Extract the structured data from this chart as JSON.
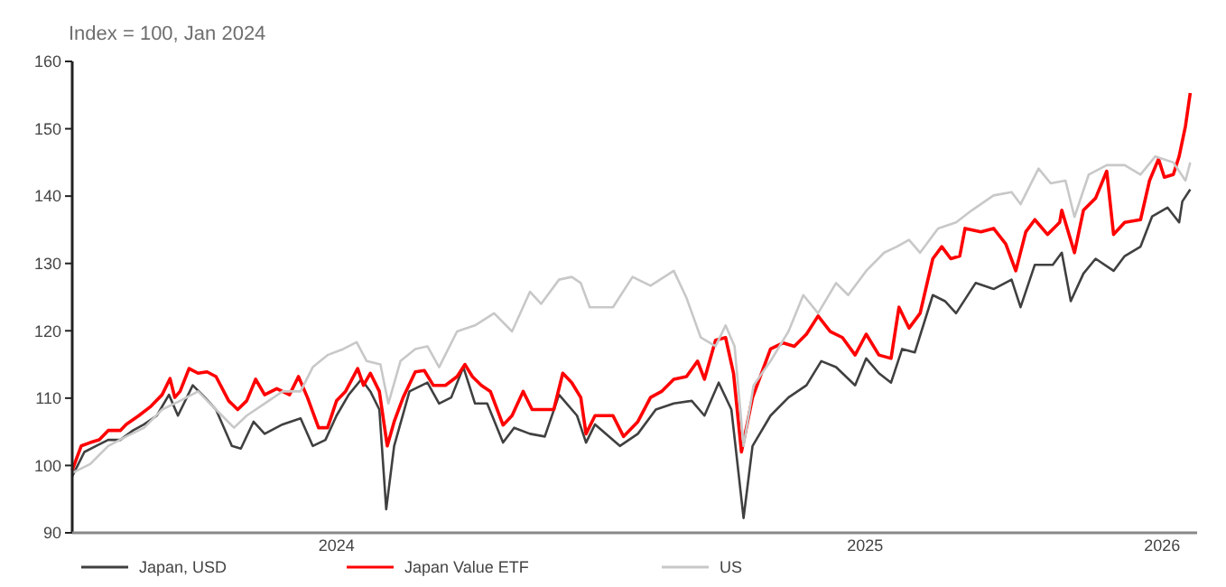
{
  "chart_data": {
    "type": "line",
    "title": "Index = 100, Jan 2024",
    "ylim": [
      90,
      160
    ],
    "yticks": [
      90,
      100,
      110,
      120,
      130,
      140,
      150,
      160
    ],
    "xlim": [
      2024,
      2026.128
    ],
    "xticks": [
      {
        "value": 2024.5,
        "label": "2024"
      },
      {
        "value": 2025.5,
        "label": "2025"
      },
      {
        "value": 2026.062,
        "label": "2026"
      }
    ],
    "grid": false,
    "legend": "bottom",
    "series": [
      {
        "name": "Japan, USD",
        "color": "#404040",
        "x": [
          2024.0,
          2024.023,
          2024.045,
          2024.068,
          2024.091,
          2024.115,
          2024.136,
          2024.16,
          2024.183,
          2024.2,
          2024.228,
          2024.251,
          2024.272,
          2024.302,
          2024.319,
          2024.343,
          2024.364,
          2024.398,
          2024.432,
          2024.455,
          2024.479,
          2024.5,
          2024.523,
          2024.547,
          2024.564,
          2024.581,
          2024.594,
          2024.609,
          2024.638,
          2024.672,
          2024.694,
          2024.717,
          2024.74,
          2024.762,
          2024.785,
          2024.815,
          2024.836,
          2024.866,
          2024.894,
          2024.921,
          2024.955,
          2024.972,
          2024.989,
          2025.036,
          2025.07,
          2025.104,
          2025.138,
          2025.172,
          2025.196,
          2025.223,
          2025.247,
          2025.27,
          2025.287,
          2025.321,
          2025.355,
          2025.389,
          2025.417,
          2025.445,
          2025.481,
          2025.502,
          2025.526,
          2025.549,
          2025.57,
          2025.594,
          2025.628,
          2025.651,
          2025.672,
          2025.709,
          2025.743,
          2025.777,
          2025.794,
          2025.821,
          2025.855,
          2025.872,
          2025.889,
          2025.913,
          2025.936,
          2025.97,
          2025.991,
          2026.021,
          2026.043,
          2026.072,
          2026.094,
          2026.1,
          2026.115
        ],
        "values": [
          98.4,
          102,
          102.9,
          103.8,
          103.8,
          105.2,
          106.1,
          107.4,
          110.5,
          107.4,
          111.9,
          110.1,
          108.3,
          102.9,
          102.5,
          106.5,
          104.7,
          106.1,
          107,
          102.9,
          103.8,
          107.4,
          110.5,
          112.8,
          111,
          108.3,
          93.5,
          102.9,
          111,
          112.3,
          109.2,
          110.1,
          114.6,
          109.2,
          109.2,
          103.4,
          105.6,
          104.7,
          104.3,
          110.5,
          107.4,
          103.4,
          106.1,
          102.9,
          104.7,
          108.3,
          109.2,
          109.6,
          107.4,
          112.3,
          108.3,
          92.2,
          102.9,
          107.4,
          110.1,
          111.9,
          115.5,
          114.6,
          111.9,
          115.9,
          113.7,
          112.3,
          117.3,
          116.8,
          125.3,
          124.4,
          122.6,
          127.1,
          126.2,
          127.6,
          123.5,
          129.8,
          129.8,
          131.6,
          124.4,
          128.5,
          130.7,
          128.9,
          131.1,
          132.5,
          137,
          138.3,
          136.1,
          139.2,
          141
        ]
      },
      {
        "name": "Japan Value ETF",
        "color": "#ff0000",
        "x": [
          2024.0,
          2024.017,
          2024.034,
          2024.051,
          2024.068,
          2024.091,
          2024.102,
          2024.126,
          2024.149,
          2024.17,
          2024.185,
          2024.194,
          2024.204,
          2024.221,
          2024.238,
          2024.255,
          2024.272,
          2024.296,
          2024.313,
          2024.33,
          2024.347,
          2024.364,
          2024.387,
          2024.411,
          2024.428,
          2024.445,
          2024.466,
          2024.483,
          2024.5,
          2024.517,
          2024.54,
          2024.551,
          2024.564,
          2024.581,
          2024.596,
          2024.609,
          2024.626,
          2024.649,
          2024.666,
          2024.683,
          2024.706,
          2024.728,
          2024.743,
          2024.757,
          2024.774,
          2024.791,
          2024.815,
          2024.832,
          2024.853,
          2024.87,
          2024.894,
          2024.911,
          2024.928,
          2024.945,
          2024.962,
          2024.972,
          2024.989,
          2025.023,
          2025.043,
          2025.07,
          2025.094,
          2025.115,
          2025.138,
          2025.162,
          2025.183,
          2025.196,
          2025.217,
          2025.236,
          2025.251,
          2025.266,
          2025.287,
          2025.321,
          2025.345,
          2025.366,
          2025.389,
          2025.411,
          2025.434,
          2025.457,
          2025.481,
          2025.502,
          2025.526,
          2025.549,
          2025.564,
          2025.583,
          2025.604,
          2025.628,
          2025.645,
          2025.662,
          2025.679,
          2025.689,
          2025.719,
          2025.743,
          2025.766,
          2025.785,
          2025.804,
          2025.821,
          2025.845,
          2025.868,
          2025.872,
          2025.896,
          2025.913,
          2025.936,
          2025.957,
          2025.97,
          2025.991,
          2026.021,
          2026.038,
          2026.055,
          2026.066,
          2026.083,
          2026.094,
          2026.106,
          2026.115
        ],
        "values": [
          99.3,
          102.9,
          103.4,
          103.8,
          105.2,
          105.2,
          106.1,
          107.4,
          108.8,
          110.5,
          112.9,
          110.1,
          111,
          114.4,
          113.7,
          113.9,
          113.2,
          109.6,
          108.3,
          109.6,
          112.8,
          110.5,
          111.4,
          110.5,
          113.2,
          110.1,
          105.6,
          105.6,
          109.6,
          111,
          114.4,
          111.9,
          113.7,
          111,
          102.9,
          106.5,
          110.1,
          113.9,
          114.1,
          111.9,
          111.9,
          113.2,
          115,
          113.2,
          111.9,
          111,
          106,
          107.4,
          111,
          108.3,
          108.3,
          108.3,
          113.7,
          112.3,
          110.1,
          104.7,
          107.4,
          107.4,
          104.3,
          106.5,
          110.1,
          111,
          112.8,
          113.2,
          115.5,
          112.8,
          118.6,
          119,
          113.7,
          102,
          110.1,
          117.3,
          118.2,
          117.7,
          119.5,
          122.2,
          119.9,
          119,
          116.4,
          119.5,
          116.4,
          115.9,
          123.5,
          120.4,
          122.6,
          130.7,
          132.5,
          130.7,
          131.1,
          135.2,
          134.7,
          135.2,
          132.9,
          128.9,
          134.7,
          136.5,
          134.3,
          136.1,
          137.9,
          131.6,
          137.9,
          139.7,
          143.7,
          134.3,
          136.1,
          136.5,
          142.3,
          145.5,
          142.8,
          143.2,
          145.9,
          150.4,
          155.3
        ]
      },
      {
        "name": "US",
        "color": "#c8c8c8",
        "x": [
          2024.0,
          2024.034,
          2024.068,
          2024.102,
          2024.136,
          2024.17,
          2024.204,
          2024.238,
          2024.272,
          2024.306,
          2024.33,
          2024.364,
          2024.398,
          2024.432,
          2024.455,
          2024.483,
          2024.513,
          2024.538,
          2024.557,
          2024.583,
          2024.598,
          2024.621,
          2024.649,
          2024.672,
          2024.694,
          2024.728,
          2024.762,
          2024.798,
          2024.832,
          2024.866,
          2024.887,
          2024.921,
          2024.945,
          2024.962,
          2024.979,
          2025.023,
          2025.06,
          2025.094,
          2025.138,
          2025.162,
          2025.189,
          2025.217,
          2025.236,
          2025.253,
          2025.27,
          2025.289,
          2025.321,
          2025.355,
          2025.383,
          2025.411,
          2025.445,
          2025.468,
          2025.502,
          2025.536,
          2025.56,
          2025.583,
          2025.604,
          2025.638,
          2025.672,
          2025.702,
          2025.743,
          2025.777,
          2025.794,
          2025.828,
          2025.851,
          2025.879,
          2025.896,
          2025.923,
          2025.957,
          2025.991,
          2026.021,
          2026.049,
          2026.083,
          2026.106,
          2026.115
        ],
        "values": [
          98.9,
          100.2,
          102.9,
          104.3,
          105.6,
          108.3,
          109.6,
          111,
          108.3,
          105.6,
          107.4,
          109.2,
          111,
          111,
          114.6,
          116.4,
          117.3,
          118.3,
          115.5,
          115,
          109.2,
          115.5,
          117.3,
          117.7,
          114.6,
          119.9,
          120.8,
          122.6,
          119.9,
          125.8,
          124,
          127.6,
          128,
          127.1,
          123.5,
          123.5,
          128,
          126.7,
          128.9,
          124.9,
          119,
          117.7,
          120.8,
          117.7,
          102.9,
          111.9,
          115.5,
          119.9,
          125.3,
          122.6,
          127.1,
          125.3,
          128.9,
          131.6,
          132.5,
          133.5,
          131.6,
          135.2,
          136.1,
          137.9,
          140.1,
          140.6,
          138.8,
          144.1,
          141.9,
          142.3,
          136.9,
          143.2,
          144.6,
          144.6,
          143.2,
          145.9,
          145,
          142.3,
          145
        ]
      }
    ]
  }
}
